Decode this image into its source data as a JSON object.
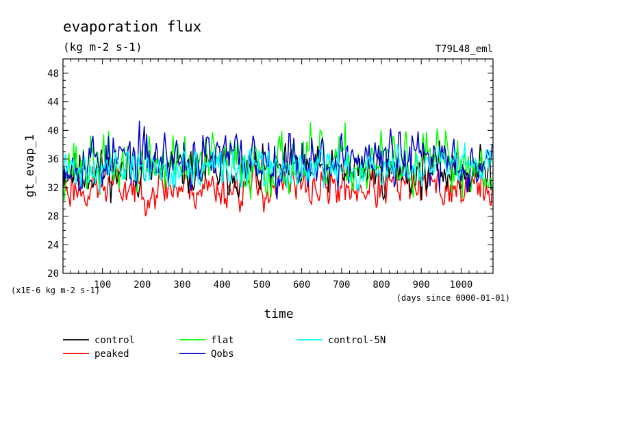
{
  "chart_data": {
    "type": "line",
    "title": "evaporation flux",
    "units": "(kg m-2 s-1)",
    "run_label": "T79L48_eml",
    "xlabel": "time",
    "ylabel": "gt_evap_1",
    "y_scale_note": "(x1E-6 kg m-2 s-1)",
    "x_axis_note": "(days since 0000-01-01)",
    "xlim": [
      1,
      1080
    ],
    "ylim": [
      20,
      50
    ],
    "x_ticks": [
      100,
      200,
      300,
      400,
      500,
      600,
      700,
      800,
      900,
      1000
    ],
    "y_ticks": [
      20,
      24,
      28,
      32,
      36,
      40,
      44,
      48
    ],
    "grid": false,
    "legend_position": "bottom-left",
    "series": [
      {
        "name": "control",
        "color": "#000000",
        "mean": 34.2,
        "spread": 1.5,
        "seed": 11
      },
      {
        "name": "peaked",
        "color": "#ff0000",
        "mean": 32.0,
        "spread": 1.4,
        "seed": 23
      },
      {
        "name": "flat",
        "color": "#00ff00",
        "mean": 35.3,
        "spread": 2.0,
        "seed": 37
      },
      {
        "name": "Qobs",
        "color": "#0000cc",
        "mean": 36.0,
        "spread": 1.9,
        "seed": 53
      },
      {
        "name": "control-5N",
        "color": "#00ffff",
        "mean": 34.6,
        "spread": 1.3,
        "seed": 71
      }
    ],
    "sample_step_days": 3
  }
}
